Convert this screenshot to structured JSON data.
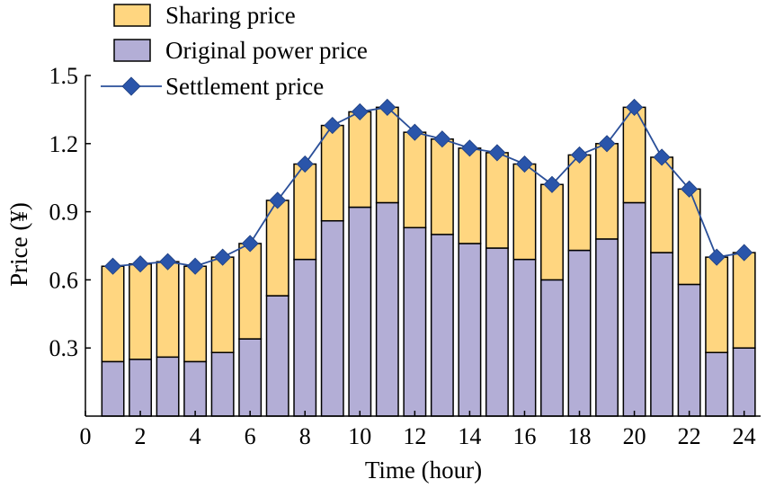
{
  "chart_data": {
    "type": "bar",
    "stacked": true,
    "xlabel": "Time (hour)",
    "ylabel": "Price (¥)",
    "xlim": [
      0,
      24.6
    ],
    "ylim": [
      0,
      1.5
    ],
    "xticks": [
      0,
      2,
      4,
      6,
      8,
      10,
      12,
      14,
      16,
      18,
      20,
      22,
      24
    ],
    "yticks": [
      0.3,
      0.6,
      0.9,
      1.2,
      1.5
    ],
    "ytick_labels": [
      "0.3",
      "0.6",
      "0.9",
      "1.2",
      "1.5"
    ],
    "grid": false,
    "legend_position": "top-left",
    "x": [
      1,
      2,
      3,
      4,
      5,
      6,
      7,
      8,
      9,
      10,
      11,
      12,
      13,
      14,
      15,
      16,
      17,
      18,
      19,
      20,
      21,
      22,
      23,
      24
    ],
    "series": [
      {
        "name": "Sharing price",
        "kind": "bar",
        "color": "#ffd680",
        "values": [
          0.42,
          0.42,
          0.42,
          0.42,
          0.42,
          0.42,
          0.42,
          0.42,
          0.42,
          0.42,
          0.42,
          0.42,
          0.42,
          0.42,
          0.42,
          0.42,
          0.42,
          0.42,
          0.42,
          0.42,
          0.42,
          0.42,
          0.42,
          0.42
        ]
      },
      {
        "name": "Original power price",
        "kind": "bar",
        "color": "#b3aed6",
        "values": [
          0.24,
          0.25,
          0.26,
          0.24,
          0.28,
          0.34,
          0.53,
          0.69,
          0.86,
          0.92,
          0.94,
          0.83,
          0.8,
          0.76,
          0.74,
          0.69,
          0.6,
          0.73,
          0.78,
          0.94,
          0.72,
          0.58,
          0.28,
          0.3
        ]
      },
      {
        "name": "Settlement price",
        "kind": "line",
        "color": "#2a55aa",
        "values": [
          0.66,
          0.67,
          0.68,
          0.66,
          0.7,
          0.76,
          0.95,
          1.11,
          1.28,
          1.34,
          1.36,
          1.25,
          1.22,
          1.18,
          1.16,
          1.11,
          1.02,
          1.15,
          1.2,
          1.36,
          1.14,
          1.0,
          0.7,
          0.72
        ]
      }
    ]
  }
}
